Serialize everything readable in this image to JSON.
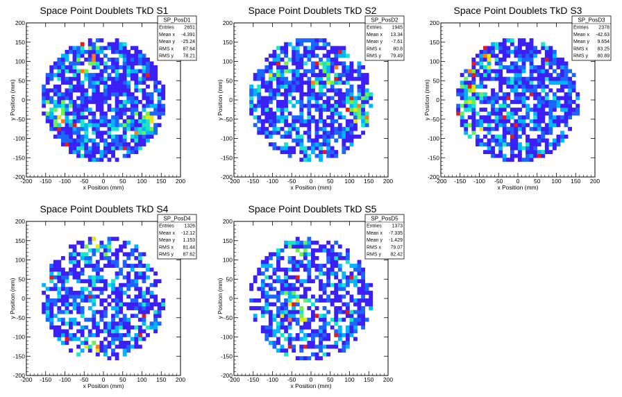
{
  "chart_data": [
    {
      "type": "heatmap",
      "title": "Space Point Doublets TkD S1",
      "xlabel": "x Position (mm)",
      "ylabel": "y Position (mm)",
      "xlim": [
        -200,
        200
      ],
      "ylim": [
        -200,
        200
      ],
      "xticks": [
        -200,
        -150,
        -100,
        -50,
        0,
        50,
        100,
        150,
        200
      ],
      "yticks": [
        -200,
        -150,
        -100,
        -50,
        0,
        50,
        100,
        150,
        200
      ],
      "radius": 160,
      "bin_size": 10,
      "seed": 11,
      "density": 0.78,
      "hotspots": [
        [
          -120,
          -40,
          0.55
        ],
        [
          90,
          -70,
          0.5
        ],
        [
          -40,
          100,
          0.35
        ]
      ],
      "stats": {
        "name": "SP_PosD1",
        "rows": [
          [
            "Entries",
            "2651"
          ],
          [
            "Mean x",
            "-4.391"
          ],
          [
            "Mean y",
            "-25.24"
          ],
          [
            "RMS x",
            "87.64"
          ],
          [
            "RMS y",
            "78.21"
          ]
        ]
      }
    },
    {
      "type": "heatmap",
      "title": "Space Point Doublets TkD S2",
      "xlabel": "x Position (mm)",
      "ylabel": "y Position (mm)",
      "xlim": [
        -200,
        200
      ],
      "ylim": [
        -200,
        200
      ],
      "xticks": [
        -200,
        -150,
        -100,
        -50,
        0,
        50,
        100,
        150,
        200
      ],
      "yticks": [
        -200,
        -150,
        -100,
        -50,
        0,
        50,
        100,
        150,
        200
      ],
      "radius": 160,
      "bin_size": 10,
      "seed": 23,
      "density": 0.68,
      "hotspots": [
        [
          40,
          60,
          0.4
        ],
        [
          130,
          -20,
          0.45
        ],
        [
          -90,
          90,
          0.3
        ]
      ],
      "stats": {
        "name": "SP_PosD2",
        "rows": [
          [
            "Entries",
            "1945"
          ],
          [
            "Mean x",
            "13.34"
          ],
          [
            "Mean y",
            "-7.61"
          ],
          [
            "RMS x",
            "80.8"
          ],
          [
            "RMS y",
            "79.49"
          ]
        ]
      }
    },
    {
      "type": "heatmap",
      "title": "Space Point Doublets TkD S3",
      "xlabel": "x Position (mm)",
      "ylabel": "y Position (mm)",
      "xlim": [
        -200,
        200
      ],
      "ylim": [
        -200,
        200
      ],
      "xticks": [
        -200,
        -150,
        -100,
        -50,
        0,
        50,
        100,
        150,
        200
      ],
      "yticks": [
        -200,
        -150,
        -100,
        -50,
        0,
        50,
        100,
        150,
        200
      ],
      "radius": 160,
      "bin_size": 10,
      "seed": 37,
      "density": 0.72,
      "hotspots": [
        [
          -135,
          0,
          0.6
        ],
        [
          -100,
          80,
          0.35
        ],
        [
          -110,
          -90,
          0.35
        ]
      ],
      "stats": {
        "name": "SP_PosD3",
        "rows": [
          [
            "Entries",
            "2378"
          ],
          [
            "Mean x",
            "-42.63"
          ],
          [
            "Mean y",
            "9.654"
          ],
          [
            "RMS x",
            "83.25"
          ],
          [
            "RMS y",
            "80.89"
          ]
        ]
      }
    },
    {
      "type": "heatmap",
      "title": "Space Point Doublets TkD S4",
      "xlabel": "x Position (mm)",
      "ylabel": "y Position (mm)",
      "xlim": [
        -200,
        200
      ],
      "ylim": [
        -200,
        200
      ],
      "xticks": [
        -200,
        -150,
        -100,
        -50,
        0,
        50,
        100,
        150,
        200
      ],
      "yticks": [
        -200,
        -150,
        -100,
        -50,
        0,
        50,
        100,
        150,
        200
      ],
      "radius": 160,
      "bin_size": 10,
      "seed": 51,
      "density": 0.6,
      "hotspots": [
        [
          -20,
          150,
          0.25
        ],
        [
          -50,
          -140,
          0.25
        ]
      ],
      "stats": {
        "name": "SP_PosD4",
        "rows": [
          [
            "Entries",
            "1326"
          ],
          [
            "Mean x",
            "-12.12"
          ],
          [
            "Mean y",
            "1.153"
          ],
          [
            "RMS x",
            "81.44"
          ],
          [
            "RMS y",
            "87.62"
          ]
        ]
      }
    },
    {
      "type": "heatmap",
      "title": "Space Point Doublets TkD S5",
      "xlabel": "x Position (mm)",
      "ylabel": "y Position (mm)",
      "xlim": [
        -200,
        200
      ],
      "ylim": [
        -200,
        200
      ],
      "xticks": [
        -200,
        -150,
        -100,
        -50,
        0,
        50,
        100,
        150,
        200
      ],
      "yticks": [
        -200,
        -150,
        -100,
        -50,
        0,
        50,
        100,
        150,
        200
      ],
      "radius": 160,
      "bin_size": 10,
      "seed": 67,
      "density": 0.6,
      "hotspots": [
        [
          -40,
          -20,
          0.55
        ],
        [
          -30,
          150,
          0.35
        ]
      ],
      "stats": {
        "name": "SP_PosD5",
        "rows": [
          [
            "Entries",
            "1373"
          ],
          [
            "Mean x",
            "-7.335"
          ],
          [
            "Mean y",
            "-1.429"
          ],
          [
            "RMS x",
            "79.07"
          ],
          [
            "RMS y",
            "82.42"
          ]
        ]
      }
    }
  ],
  "colors": {
    "palette": [
      "#3b1ff5",
      "#1a66ff",
      "#00b4ff",
      "#19e6c8",
      "#6cf24d",
      "#e6e61a",
      "#ff7a1a",
      "#e61a1a"
    ],
    "axis": "#000000",
    "background": "#ffffff"
  }
}
